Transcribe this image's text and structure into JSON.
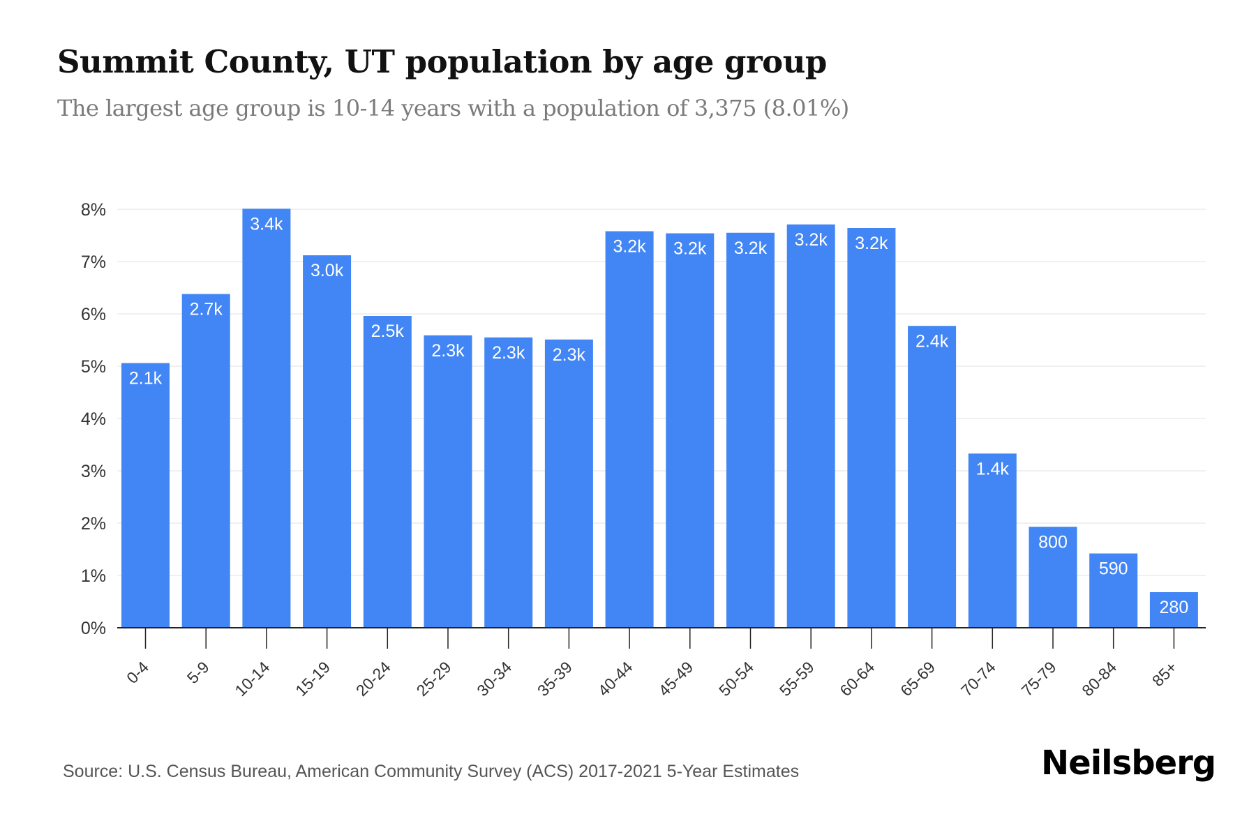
{
  "header": {
    "title": "Summit County, UT population by age group",
    "subtitle": "The largest age group is 10-14 years with a population of 3,375 (8.01%)"
  },
  "footer": {
    "source": "Source: U.S. Census Bureau, American Community Survey (ACS) 2017-2021 5-Year Estimates",
    "brand": "Neilsberg"
  },
  "colors": {
    "bar": "#4285f4",
    "grid": "#ececec",
    "axis": "#222222"
  },
  "chart_data": {
    "type": "bar",
    "title": "Summit County, UT population by age group",
    "subtitle": "The largest age group is 10-14 years with a population of 3,375 (8.01%)",
    "xlabel": "",
    "ylabel": "",
    "ylim": [
      0,
      8
    ],
    "yticks": [
      0,
      1,
      2,
      3,
      4,
      5,
      6,
      7,
      8
    ],
    "ytick_labels": [
      "0%",
      "1%",
      "2%",
      "3%",
      "4%",
      "5%",
      "6%",
      "7%",
      "8%"
    ],
    "grid": true,
    "legend": "none",
    "categories": [
      "0-4",
      "5-9",
      "10-14",
      "15-19",
      "20-24",
      "25-29",
      "30-34",
      "35-39",
      "40-44",
      "45-49",
      "50-54",
      "55-59",
      "60-64",
      "65-69",
      "70-74",
      "75-79",
      "80-84",
      "85+"
    ],
    "values": [
      5.06,
      6.38,
      8.01,
      7.12,
      5.96,
      5.59,
      5.55,
      5.51,
      7.58,
      7.54,
      7.55,
      7.71,
      7.64,
      5.77,
      3.33,
      1.93,
      1.42,
      0.68
    ],
    "value_unit": "percent of population",
    "data_labels": [
      "2.1k",
      "2.7k",
      "3.4k",
      "3.0k",
      "2.5k",
      "2.3k",
      "2.3k",
      "2.3k",
      "3.2k",
      "3.2k",
      "3.2k",
      "3.2k",
      "3.2k",
      "2.4k",
      "1.4k",
      "800",
      "590",
      "280"
    ]
  }
}
